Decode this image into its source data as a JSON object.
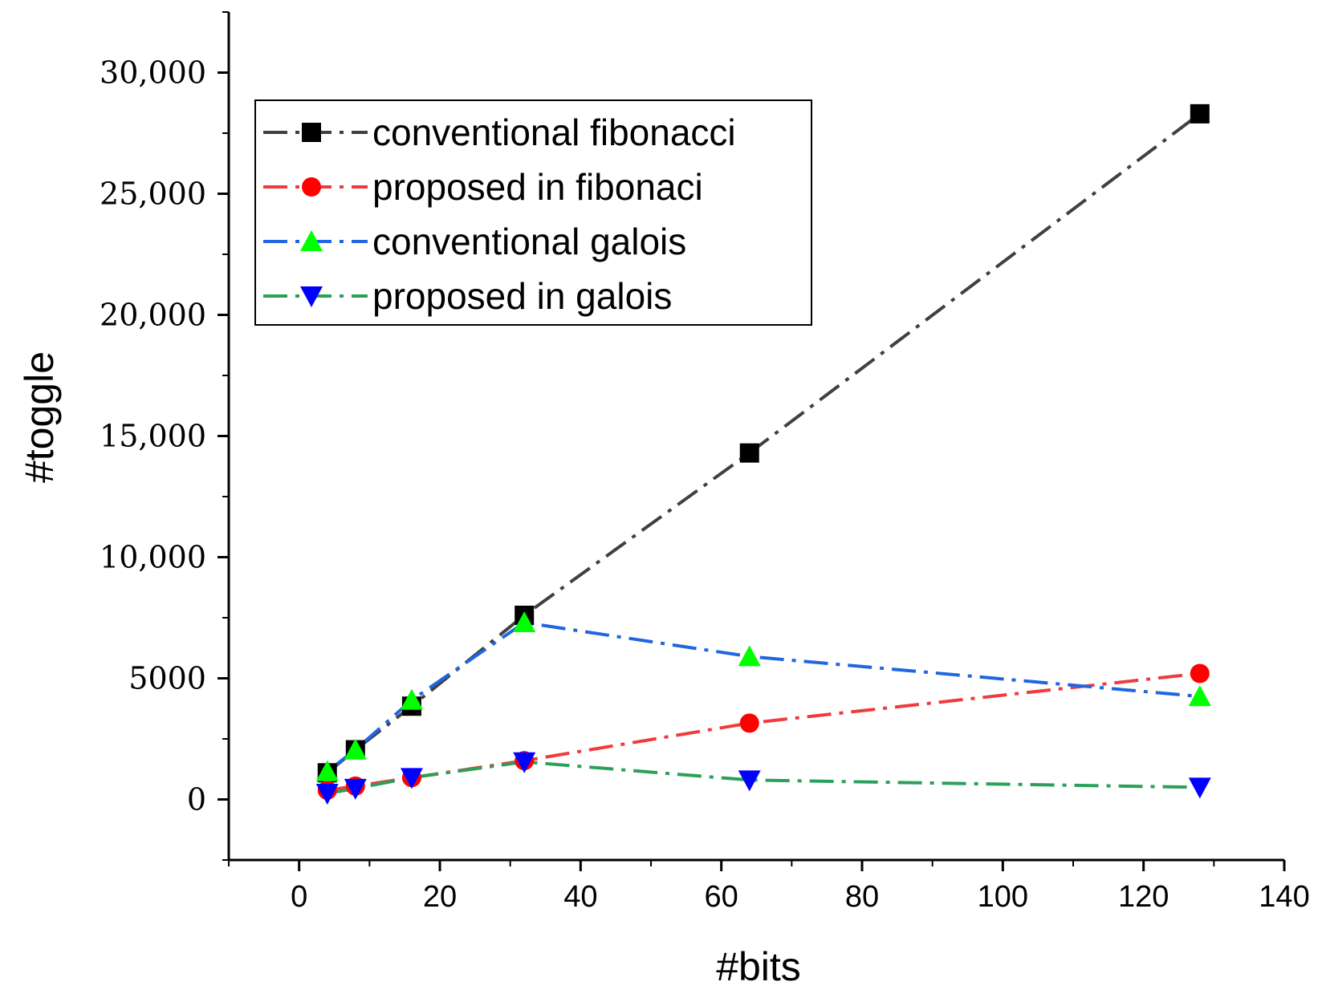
{
  "chart_data": {
    "type": "line",
    "title": "",
    "xlabel": "#bits",
    "ylabel": "#toggle",
    "xlim": [
      -10,
      140
    ],
    "ylim": [
      -2500,
      32500
    ],
    "xticks": [
      {
        "value": 0,
        "label": "0"
      },
      {
        "value": 20,
        "label": "20"
      },
      {
        "value": 40,
        "label": "40"
      },
      {
        "value": 60,
        "label": "60"
      },
      {
        "value": 80,
        "label": "80"
      },
      {
        "value": 100,
        "label": "100"
      },
      {
        "value": 120,
        "label": "120"
      },
      {
        "value": 140,
        "label": "140"
      }
    ],
    "yticks": [
      {
        "value": 0,
        "label": "0"
      },
      {
        "value": 5000,
        "label": "5000"
      },
      {
        "value": 10000,
        "label": "10,000"
      },
      {
        "value": 15000,
        "label": "15,000"
      },
      {
        "value": 20000,
        "label": "20,000"
      },
      {
        "value": 25000,
        "label": "25,000"
      },
      {
        "value": 30000,
        "label": "30,000"
      }
    ],
    "x": [
      4,
      8,
      16,
      32,
      64,
      128
    ],
    "series": [
      {
        "name": "conventional fibonacci",
        "values": [
          1100,
          2050,
          3850,
          7600,
          14300,
          28300
        ],
        "line_color": "#404040",
        "marker": "square",
        "marker_color": "#000000"
      },
      {
        "name": "proposed in fibonaci",
        "values": [
          380,
          550,
          900,
          1600,
          3150,
          5200
        ],
        "line_color": "#ef3b3b",
        "marker": "circle",
        "marker_color": "#ff0000"
      },
      {
        "name": "conventional galois",
        "values": [
          1150,
          2050,
          4100,
          7300,
          5900,
          4250
        ],
        "line_color": "#1f66e0",
        "marker": "triangle-up",
        "marker_color": "#00ff00"
      },
      {
        "name": "proposed in galois",
        "values": [
          250,
          450,
          900,
          1550,
          800,
          500
        ],
        "line_color": "#2aa05a",
        "marker": "triangle-down",
        "marker_color": "#0000ff"
      }
    ],
    "legend_position": "top-left",
    "grid": false
  }
}
